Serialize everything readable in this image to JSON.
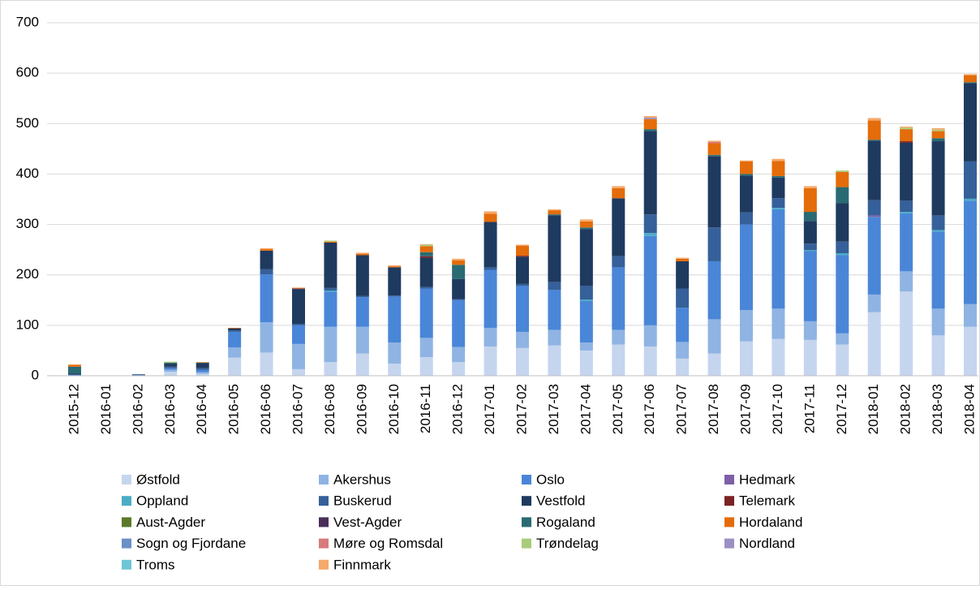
{
  "chart_data": {
    "type": "stacked_bar",
    "categories": [
      "2015-12",
      "2016-01",
      "2016-02",
      "2016-03",
      "2016-04",
      "2016-05",
      "2016-06",
      "2016-07",
      "2016-08",
      "2016-09",
      "2016-10",
      "2016-11",
      "2016-12",
      "2017-01",
      "2017-02",
      "2017-03",
      "2017-04",
      "2017-05",
      "2017-06",
      "2017-07",
      "2017-08",
      "2017-09",
      "2017-10",
      "2017-11",
      "2017-12",
      "2018-01",
      "2018-02",
      "2018-03",
      "2018-04"
    ],
    "series": [
      {
        "name": "Østfold",
        "color": "#c5d5ee",
        "values": [
          0,
          0,
          0,
          8,
          4,
          36,
          46,
          13,
          27,
          44,
          24,
          37,
          27,
          58,
          55,
          60,
          50,
          62,
          58,
          34,
          44,
          68,
          73,
          71,
          62,
          126,
          167,
          80,
          97
        ]
      },
      {
        "name": "Akershus",
        "color": "#8fb4e3",
        "values": [
          0,
          0,
          0,
          4,
          3,
          20,
          60,
          50,
          70,
          53,
          42,
          38,
          30,
          37,
          32,
          31,
          16,
          29,
          42,
          33,
          68,
          62,
          60,
          37,
          22,
          35,
          40,
          53,
          45
        ]
      },
      {
        "name": "Oslo",
        "color": "#4a86d8",
        "values": [
          2,
          0,
          1,
          3,
          5,
          31,
          95,
          37,
          70,
          59,
          91,
          98,
          93,
          115,
          91,
          79,
          82,
          124,
          177,
          68,
          115,
          170,
          197,
          139,
          155,
          154,
          115,
          153,
          205
        ]
      },
      {
        "name": "Hedmark",
        "color": "#7e5fa8",
        "values": [
          0,
          0,
          0,
          0,
          0,
          0,
          0,
          0,
          0,
          0,
          0,
          0,
          0,
          0,
          0,
          0,
          0,
          0,
          0,
          0,
          0,
          0,
          0,
          0,
          0,
          3,
          0,
          0,
          0
        ]
      },
      {
        "name": "Oppland",
        "color": "#4bacc6",
        "values": [
          0,
          0,
          0,
          0,
          0,
          0,
          0,
          0,
          2,
          0,
          0,
          0,
          0,
          0,
          0,
          0,
          3,
          0,
          6,
          0,
          0,
          0,
          3,
          2,
          4,
          0,
          3,
          3,
          4
        ]
      },
      {
        "name": "Buskerud",
        "color": "#35609a",
        "values": [
          0,
          0,
          2,
          3,
          3,
          3,
          10,
          3,
          5,
          2,
          2,
          3,
          2,
          5,
          4,
          16,
          27,
          22,
          37,
          38,
          67,
          24,
          19,
          13,
          23,
          30,
          22,
          29,
          74
        ]
      },
      {
        "name": "Vestfold",
        "color": "#1f3a5f",
        "values": [
          2,
          0,
          0,
          6,
          10,
          4,
          37,
          69,
          90,
          81,
          56,
          58,
          40,
          90,
          54,
          132,
          113,
          115,
          165,
          54,
          141,
          73,
          41,
          45,
          76,
          118,
          115,
          147,
          155
        ]
      },
      {
        "name": "Telemark",
        "color": "#7b2323",
        "values": [
          0,
          0,
          0,
          0,
          0,
          0,
          0,
          1,
          0,
          0,
          0,
          3,
          0,
          0,
          2,
          0,
          0,
          0,
          0,
          0,
          0,
          0,
          0,
          0,
          0,
          0,
          3,
          0,
          0
        ]
      },
      {
        "name": "Aust-Agder",
        "color": "#5a7a2a",
        "values": [
          0,
          0,
          0,
          0,
          0,
          0,
          0,
          0,
          0,
          0,
          0,
          0,
          0,
          0,
          0,
          0,
          0,
          0,
          0,
          0,
          0,
          0,
          0,
          0,
          0,
          0,
          0,
          0,
          0
        ]
      },
      {
        "name": "Vest-Agder",
        "color": "#4a2f5c",
        "values": [
          0,
          0,
          0,
          0,
          0,
          0,
          0,
          0,
          0,
          0,
          0,
          0,
          0,
          0,
          0,
          0,
          0,
          0,
          0,
          0,
          0,
          0,
          0,
          0,
          0,
          0,
          0,
          0,
          0
        ]
      },
      {
        "name": "Rogaland",
        "color": "#2a6b73",
        "values": [
          14,
          0,
          0,
          2,
          1,
          0,
          0,
          0,
          0,
          0,
          0,
          8,
          28,
          0,
          0,
          2,
          3,
          0,
          4,
          0,
          3,
          3,
          3,
          18,
          32,
          2,
          0,
          6,
          2
        ]
      },
      {
        "name": "Hordaland",
        "color": "#e46c0a",
        "values": [
          4,
          0,
          0,
          0,
          1,
          1,
          3,
          0,
          2,
          3,
          2,
          12,
          9,
          16,
          20,
          8,
          12,
          20,
          20,
          5,
          23,
          25,
          30,
          47,
          30,
          38,
          24,
          14,
          14
        ]
      },
      {
        "name": "Sogn og Fjordane",
        "color": "#6b8fc6",
        "values": [
          0,
          0,
          0,
          0,
          0,
          0,
          0,
          0,
          0,
          0,
          0,
          0,
          0,
          0,
          0,
          0,
          0,
          0,
          0,
          0,
          0,
          0,
          0,
          0,
          0,
          0,
          0,
          0,
          0
        ]
      },
      {
        "name": "Møre og Romsdal",
        "color": "#d87a7a",
        "values": [
          0,
          0,
          0,
          0,
          0,
          0,
          0,
          0,
          0,
          0,
          0,
          0,
          0,
          0,
          0,
          0,
          0,
          0,
          0,
          0,
          3,
          0,
          0,
          0,
          0,
          0,
          0,
          0,
          0
        ]
      },
      {
        "name": "Trøndelag",
        "color": "#a9cc7a",
        "values": [
          0,
          0,
          0,
          2,
          0,
          0,
          0,
          0,
          2,
          0,
          0,
          3,
          0,
          0,
          0,
          0,
          0,
          0,
          0,
          0,
          0,
          0,
          0,
          0,
          3,
          0,
          3,
          3,
          0
        ]
      },
      {
        "name": "Nordland",
        "color": "#9c8fc2",
        "values": [
          0,
          0,
          0,
          0,
          0,
          0,
          0,
          0,
          0,
          0,
          0,
          0,
          0,
          0,
          0,
          0,
          0,
          0,
          3,
          0,
          0,
          0,
          0,
          0,
          0,
          0,
          0,
          0,
          0
        ]
      },
      {
        "name": "Troms",
        "color": "#6fc6d6",
        "values": [
          0,
          0,
          0,
          0,
          0,
          0,
          0,
          0,
          0,
          0,
          0,
          0,
          0,
          0,
          0,
          0,
          0,
          0,
          0,
          0,
          0,
          0,
          0,
          0,
          0,
          0,
          0,
          0,
          0
        ]
      },
      {
        "name": "Finnmark",
        "color": "#f5a96a",
        "values": [
          0,
          0,
          0,
          0,
          0,
          0,
          2,
          2,
          0,
          2,
          2,
          1,
          3,
          5,
          2,
          2,
          4,
          4,
          3,
          2,
          2,
          2,
          4,
          4,
          0,
          5,
          2,
          3,
          2
        ]
      }
    ],
    "ylim": [
      0,
      700
    ],
    "yticks": [
      0,
      100,
      200,
      300,
      400,
      500,
      600,
      700
    ],
    "grid": true
  }
}
